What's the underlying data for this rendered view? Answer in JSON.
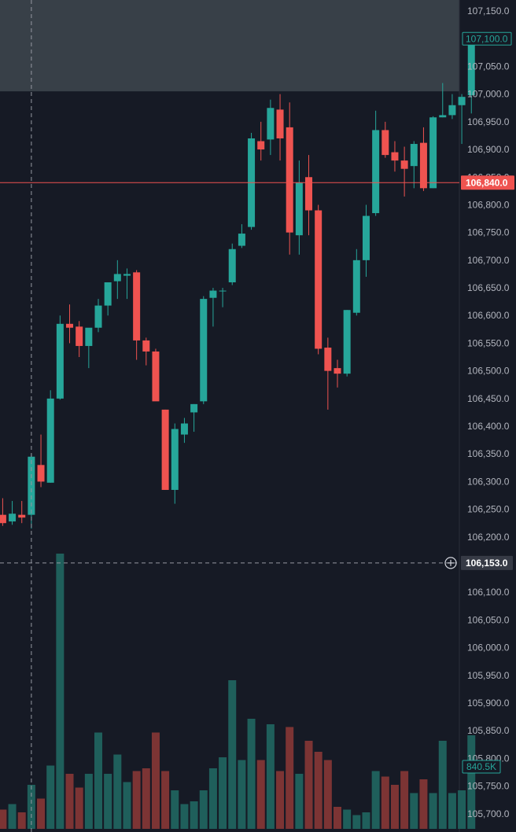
{
  "chart_data": {
    "type": "candlestick",
    "title": "",
    "theme": {
      "background": "#161a25",
      "up_color": "#26a69a",
      "down_color": "#ef5350",
      "up_volume_color": "#1f5f5b",
      "down_volume_color": "#7c3434",
      "axis_text_color": "#b2b5be",
      "highlight_zone_color": "#384048",
      "price_line_color": "#ef5350"
    },
    "y_axis": {
      "position": "right",
      "ylim": [
        105667,
        107170
      ],
      "ticks": [
        107150,
        107100,
        107050,
        107000,
        106950,
        106900,
        106850,
        106800,
        106750,
        106700,
        106650,
        106600,
        106550,
        106500,
        106450,
        106400,
        106350,
        106300,
        106250,
        106200,
        106150,
        106100,
        106050,
        106000,
        105950,
        105900,
        105850,
        105800,
        105750,
        105700
      ],
      "tick_labels": [
        "107,150.0",
        "107,100.0",
        "107,050.0",
        "107,000.0",
        "106,950.0",
        "106,900.0",
        "106,850.0",
        "106,800.0",
        "106,750.0",
        "106,700.0",
        "106,650.0",
        "106,600.0",
        "106,550.0",
        "106,500.0",
        "106,450.0",
        "106,400.0",
        "106,350.0",
        "106,300.0",
        "106,250.0",
        "106,200.0",
        "106,150.0",
        "106,100.0",
        "106,050.0",
        "106,000.0",
        "105,950.0",
        "105,900.0",
        "105,850.0",
        "105,800.0",
        "105,750.0",
        "105,700.0"
      ]
    },
    "highlight_zone": {
      "from": 107005,
      "to": 107170
    },
    "current_price": {
      "value": 106840,
      "label": "106,840.0"
    },
    "crosshair": {
      "price_label": "106,153.0",
      "value": 106153,
      "candle_index": 3
    },
    "upper_tag": {
      "value": 107100,
      "label": "107,100.0"
    },
    "volume_tag": {
      "label": "840.5K"
    },
    "volume_max": 5000,
    "candles": [
      {
        "o": 106240,
        "h": 106270,
        "l": 106220,
        "c": 106225,
        "v": 350
      },
      {
        "o": 106228,
        "h": 106265,
        "l": 106222,
        "c": 106242,
        "v": 450
      },
      {
        "o": 106240,
        "h": 106265,
        "l": 106225,
        "c": 106235,
        "v": 300
      },
      {
        "o": 106240,
        "h": 106350,
        "l": 106215,
        "c": 106345,
        "v": 800
      },
      {
        "o": 106330,
        "h": 106385,
        "l": 106290,
        "c": 106300,
        "v": 550
      },
      {
        "o": 106298,
        "h": 106465,
        "l": 106298,
        "c": 106450,
        "v": 1150
      },
      {
        "o": 106450,
        "h": 106600,
        "l": 106448,
        "c": 106585,
        "v": 5000
      },
      {
        "o": 106585,
        "h": 106620,
        "l": 106550,
        "c": 106578,
        "v": 1000
      },
      {
        "o": 106580,
        "h": 106590,
        "l": 106525,
        "c": 106545,
        "v": 750
      },
      {
        "o": 106545,
        "h": 106575,
        "l": 106505,
        "c": 106578,
        "v": 1000
      },
      {
        "o": 106578,
        "h": 106630,
        "l": 106570,
        "c": 106618,
        "v": 1750
      },
      {
        "o": 106618,
        "h": 106660,
        "l": 106600,
        "c": 106660,
        "v": 1000
      },
      {
        "o": 106662,
        "h": 106700,
        "l": 106630,
        "c": 106675,
        "v": 1350
      },
      {
        "o": 106672,
        "h": 106685,
        "l": 106630,
        "c": 106675,
        "v": 850
      },
      {
        "o": 106678,
        "h": 106682,
        "l": 106520,
        "c": 106555,
        "v": 1050
      },
      {
        "o": 106555,
        "h": 106560,
        "l": 106510,
        "c": 106535,
        "v": 1100
      },
      {
        "o": 106535,
        "h": 106540,
        "l": 106450,
        "c": 106445,
        "v": 1750
      },
      {
        "o": 106430,
        "h": 106430,
        "l": 106285,
        "c": 106285,
        "v": 1050
      },
      {
        "o": 106285,
        "h": 106405,
        "l": 106260,
        "c": 106395,
        "v": 700
      },
      {
        "o": 106385,
        "h": 106415,
        "l": 106370,
        "c": 106405,
        "v": 450
      },
      {
        "o": 106425,
        "h": 106440,
        "l": 106390,
        "c": 106440,
        "v": 500
      },
      {
        "o": 106445,
        "h": 106635,
        "l": 106440,
        "c": 106630,
        "v": 700
      },
      {
        "o": 106632,
        "h": 106650,
        "l": 106580,
        "c": 106645,
        "v": 1100
      },
      {
        "o": 106645,
        "h": 106650,
        "l": 106615,
        "c": 106645,
        "v": 1300
      },
      {
        "o": 106660,
        "h": 106730,
        "l": 106655,
        "c": 106720,
        "v": 2700
      },
      {
        "o": 106726,
        "h": 106765,
        "l": 106722,
        "c": 106748,
        "v": 1250
      },
      {
        "o": 106760,
        "h": 106930,
        "l": 106755,
        "c": 106920,
        "v": 2000
      },
      {
        "o": 106915,
        "h": 106950,
        "l": 106880,
        "c": 106900,
        "v": 1250
      },
      {
        "o": 106918,
        "h": 106990,
        "l": 106890,
        "c": 106975,
        "v": 1900
      },
      {
        "o": 106972,
        "h": 107000,
        "l": 106880,
        "c": 106920,
        "v": 1050
      },
      {
        "o": 106940,
        "h": 106985,
        "l": 106710,
        "c": 106750,
        "v": 1850
      },
      {
        "o": 106745,
        "h": 106880,
        "l": 106710,
        "c": 106840,
        "v": 1000
      },
      {
        "o": 106850,
        "h": 106890,
        "l": 106745,
        "c": 106790,
        "v": 1600
      },
      {
        "o": 106790,
        "h": 106800,
        "l": 106530,
        "c": 106540,
        "v": 1400
      },
      {
        "o": 106542,
        "h": 106560,
        "l": 106430,
        "c": 106500,
        "v": 1250
      },
      {
        "o": 106505,
        "h": 106520,
        "l": 106470,
        "c": 106495,
        "v": 400
      },
      {
        "o": 106495,
        "h": 106610,
        "l": 106490,
        "c": 106610,
        "v": 350
      },
      {
        "o": 106605,
        "h": 106720,
        "l": 106600,
        "c": 106700,
        "v": 250
      },
      {
        "o": 106700,
        "h": 106800,
        "l": 106670,
        "c": 106780,
        "v": 300
      },
      {
        "o": 106785,
        "h": 106970,
        "l": 106780,
        "c": 106935,
        "v": 1050
      },
      {
        "o": 106935,
        "h": 106950,
        "l": 106885,
        "c": 106890,
        "v": 950
      },
      {
        "o": 106895,
        "h": 106915,
        "l": 106860,
        "c": 106880,
        "v": 800
      },
      {
        "o": 106880,
        "h": 106905,
        "l": 106815,
        "c": 106865,
        "v": 1050
      },
      {
        "o": 106870,
        "h": 106915,
        "l": 106830,
        "c": 106910,
        "v": 650
      },
      {
        "o": 106912,
        "h": 106940,
        "l": 106825,
        "c": 106830,
        "v": 900
      },
      {
        "o": 106830,
        "h": 106960,
        "l": 106830,
        "c": 106958,
        "v": 650
      },
      {
        "o": 106958,
        "h": 107020,
        "l": 106958,
        "c": 106962,
        "v": 1600
      },
      {
        "o": 106962,
        "h": 107000,
        "l": 106955,
        "c": 106980,
        "v": 650
      },
      {
        "o": 106980,
        "h": 107000,
        "l": 106910,
        "c": 106995,
        "v": 700
      },
      {
        "o": 106998,
        "h": 107100,
        "l": 106965,
        "c": 107098,
        "v": 1700
      }
    ]
  }
}
